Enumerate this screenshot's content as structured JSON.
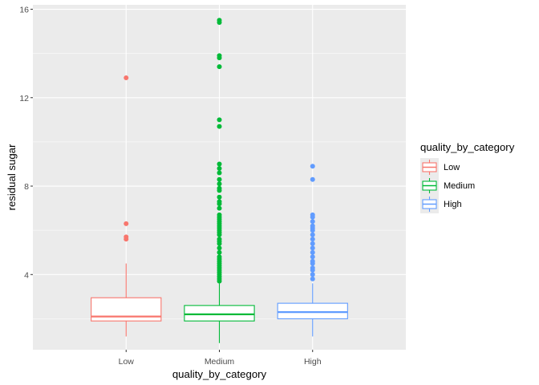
{
  "chart_data": {
    "type": "boxplot",
    "title": "",
    "xlabel": "quality_by_category",
    "ylabel": "residual sugar",
    "categories": [
      "Low",
      "Medium",
      "High"
    ],
    "ylim": [
      0.6,
      16.2
    ],
    "yticks": [
      4,
      8,
      12,
      16
    ],
    "ytick_labels": [
      "4",
      "8",
      "12",
      "16"
    ],
    "grid": true,
    "legend": {
      "title": "quality_by_category",
      "placement": "right",
      "entries": [
        "Low",
        "Medium",
        "High"
      ]
    },
    "colors": {
      "Low": "#F8766D",
      "Medium": "#00BA38",
      "High": "#619CFF"
    },
    "background": "#EBEBEB",
    "series": [
      {
        "name": "Low",
        "min": 1.2,
        "q1": 1.9,
        "median": 2.1,
        "q3": 2.95,
        "max": 4.5,
        "outliers": [
          5.6,
          5.7,
          6.3,
          12.9
        ]
      },
      {
        "name": "Medium",
        "min": 0.9,
        "q1": 1.9,
        "median": 2.2,
        "q3": 2.6,
        "max": 3.6,
        "outliers": [
          3.7,
          3.8,
          3.9,
          4.0,
          4.1,
          4.2,
          4.3,
          4.4,
          4.5,
          4.6,
          4.7,
          4.8,
          5.0,
          5.2,
          5.4,
          5.5,
          5.6,
          5.8,
          5.9,
          6.0,
          6.1,
          6.2,
          6.3,
          6.4,
          6.5,
          6.6,
          6.7,
          7.0,
          7.2,
          7.3,
          7.5,
          7.8,
          7.9,
          8.1,
          8.3,
          8.6,
          8.8,
          9.0,
          10.7,
          11.0,
          13.4,
          13.8,
          13.9,
          15.4,
          15.5
        ]
      },
      {
        "name": "High",
        "min": 1.2,
        "q1": 2.0,
        "median": 2.3,
        "q3": 2.7,
        "max": 3.6,
        "outliers": [
          3.8,
          4.0,
          4.2,
          4.3,
          4.5,
          4.6,
          4.8,
          5.0,
          5.2,
          5.4,
          5.6,
          5.8,
          6.0,
          6.1,
          6.2,
          6.4,
          6.6,
          6.7,
          8.3,
          8.9
        ]
      }
    ]
  }
}
